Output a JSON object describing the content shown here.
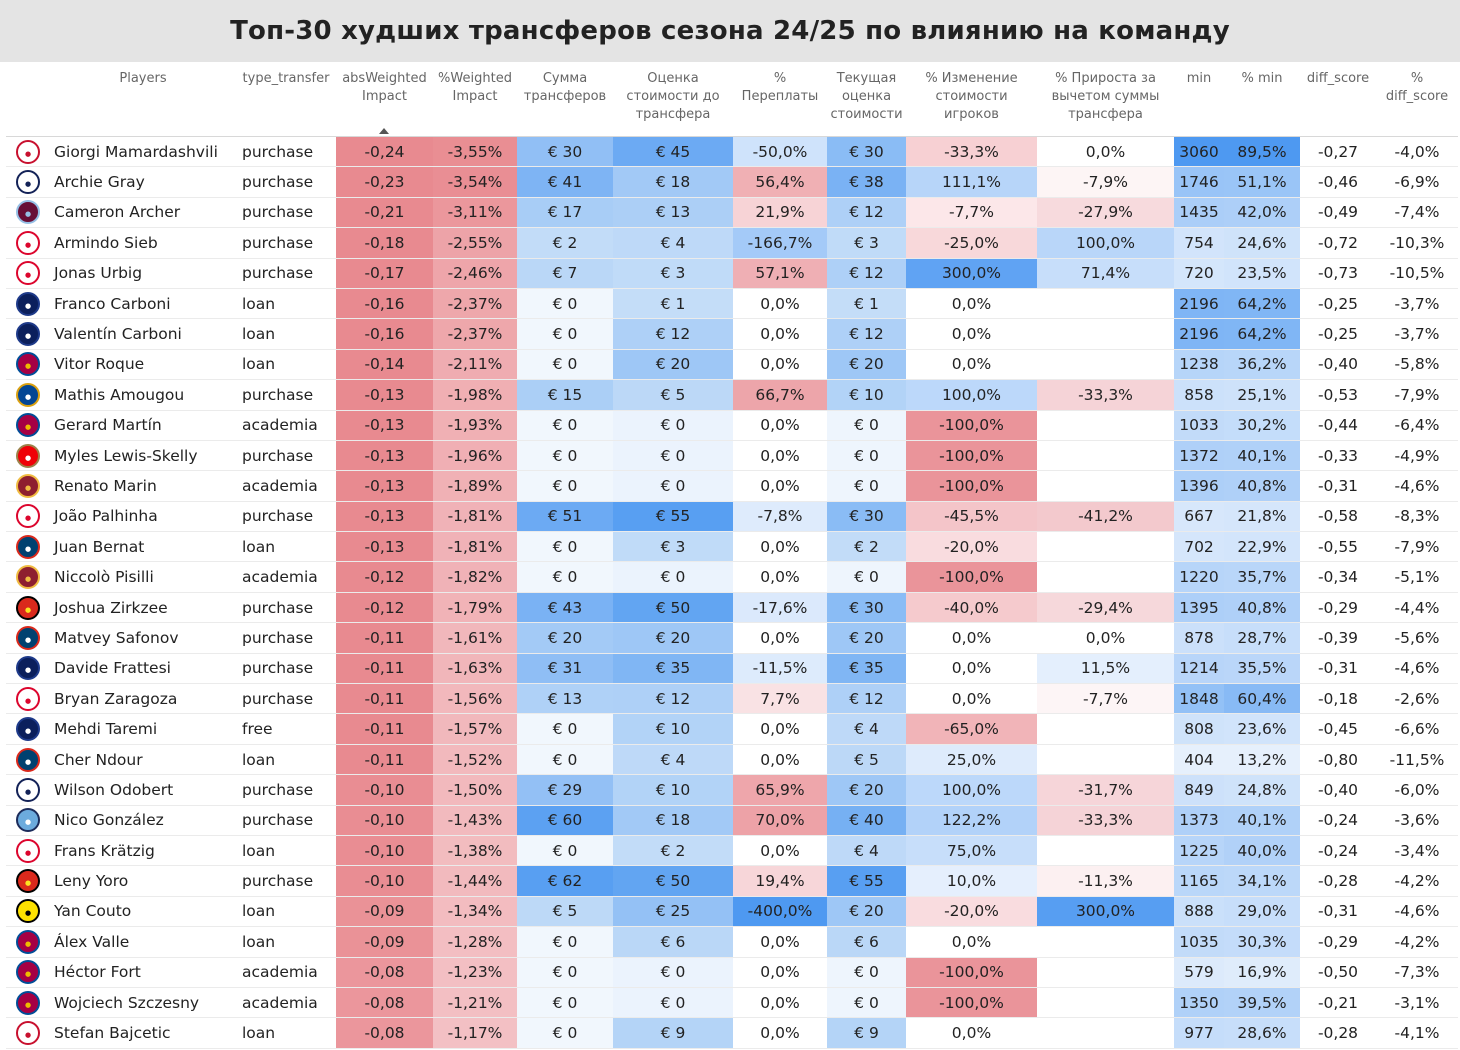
{
  "title": "Топ-30 худших трансферов сезона 24/25 по влиянию на команду",
  "chart_data": {
    "type": "table",
    "columns": [
      "Players",
      "type_transfer",
      "absWeighted Impact",
      "%Weighted Impact",
      "Сумма трансферов",
      "Оценка стоимости до трансфера",
      "% Переплаты",
      "Текущая оценка стоимости",
      "% Изменение стоимости игроков",
      "% Прироста за вычетом суммы трансфера",
      "min",
      "% min",
      "diff_score",
      "% diff_score"
    ],
    "rows": [
      {
        "club": "liverpool-icon",
        "player": "Giorgi Mamardashvili",
        "type": "purchase",
        "abs": "-0,24",
        "pct": "-3,55%",
        "sum": "€ 30",
        "before": "€ 45",
        "over": "-50,0%",
        "current": "€ 30",
        "change": "-33,3%",
        "growth": "0,0%",
        "min": "3060",
        "pmin": "89,5%",
        "diff": "-0,27",
        "pdiff": "-4,0%"
      },
      {
        "club": "tottenham-icon",
        "player": "Archie Gray",
        "type": "purchase",
        "abs": "-0,23",
        "pct": "-3,54%",
        "sum": "€ 41",
        "before": "€ 18",
        "over": "56,4%",
        "current": "€ 38",
        "change": "111,1%",
        "growth": "-7,9%",
        "min": "1746",
        "pmin": "51,1%",
        "diff": "-0,46",
        "pdiff": "-6,9%"
      },
      {
        "club": "aston-villa-icon",
        "player": "Cameron Archer",
        "type": "purchase",
        "abs": "-0,21",
        "pct": "-3,11%",
        "sum": "€ 17",
        "before": "€ 13",
        "over": "21,9%",
        "current": "€ 12",
        "change": "-7,7%",
        "growth": "-27,9%",
        "min": "1435",
        "pmin": "42,0%",
        "diff": "-0,49",
        "pdiff": "-7,4%"
      },
      {
        "club": "bayern-icon",
        "player": "Armindo Sieb",
        "type": "purchase",
        "abs": "-0,18",
        "pct": "-2,55%",
        "sum": "€ 2",
        "before": "€ 4",
        "over": "-166,7%",
        "current": "€ 3",
        "change": "-25,0%",
        "growth": "100,0%",
        "min": "754",
        "pmin": "24,6%",
        "diff": "-0,72",
        "pdiff": "-10,3%"
      },
      {
        "club": "bayern-icon",
        "player": "Jonas Urbig",
        "type": "purchase",
        "abs": "-0,17",
        "pct": "-2,46%",
        "sum": "€ 7",
        "before": "€ 3",
        "over": "57,1%",
        "current": "€ 12",
        "change": "300,0%",
        "growth": "71,4%",
        "min": "720",
        "pmin": "23,5%",
        "diff": "-0,73",
        "pdiff": "-10,5%"
      },
      {
        "club": "inter-icon",
        "player": "Franco Carboni",
        "type": "loan",
        "abs": "-0,16",
        "pct": "-2,37%",
        "sum": "€ 0",
        "before": "€ 1",
        "over": "0,0%",
        "current": "€ 1",
        "change": "0,0%",
        "growth": "",
        "min": "2196",
        "pmin": "64,2%",
        "diff": "-0,25",
        "pdiff": "-3,7%"
      },
      {
        "club": "inter-icon",
        "player": "Valentín Carboni",
        "type": "loan",
        "abs": "-0,16",
        "pct": "-2,37%",
        "sum": "€ 0",
        "before": "€ 12",
        "over": "0,0%",
        "current": "€ 12",
        "change": "0,0%",
        "growth": "",
        "min": "2196",
        "pmin": "64,2%",
        "diff": "-0,25",
        "pdiff": "-3,7%"
      },
      {
        "club": "barcelona-icon",
        "player": "Vitor Roque",
        "type": "loan",
        "abs": "-0,14",
        "pct": "-2,11%",
        "sum": "€ 0",
        "before": "€ 20",
        "over": "0,0%",
        "current": "€ 20",
        "change": "0,0%",
        "growth": "",
        "min": "1238",
        "pmin": "36,2%",
        "diff": "-0,40",
        "pdiff": "-5,8%"
      },
      {
        "club": "chelsea-icon",
        "player": "Mathis Amougou",
        "type": "purchase",
        "abs": "-0,13",
        "pct": "-1,98%",
        "sum": "€ 15",
        "before": "€ 5",
        "over": "66,7%",
        "current": "€ 10",
        "change": "100,0%",
        "growth": "-33,3%",
        "min": "858",
        "pmin": "25,1%",
        "diff": "-0,53",
        "pdiff": "-7,9%"
      },
      {
        "club": "barcelona-icon",
        "player": "Gerard Martín",
        "type": "academia",
        "abs": "-0,13",
        "pct": "-1,93%",
        "sum": "€ 0",
        "before": "€ 0",
        "over": "0,0%",
        "current": "€ 0",
        "change": "-100,0%",
        "growth": "",
        "min": "1033",
        "pmin": "30,2%",
        "diff": "-0,44",
        "pdiff": "-6,4%"
      },
      {
        "club": "arsenal-icon",
        "player": "Myles Lewis-Skelly",
        "type": "purchase",
        "abs": "-0,13",
        "pct": "-1,96%",
        "sum": "€ 0",
        "before": "€ 0",
        "over": "0,0%",
        "current": "€ 0",
        "change": "-100,0%",
        "growth": "",
        "min": "1372",
        "pmin": "40,1%",
        "diff": "-0,33",
        "pdiff": "-4,9%"
      },
      {
        "club": "roma-icon",
        "player": "Renato Marin",
        "type": "academia",
        "abs": "-0,13",
        "pct": "-1,89%",
        "sum": "€ 0",
        "before": "€ 0",
        "over": "0,0%",
        "current": "€ 0",
        "change": "-100,0%",
        "growth": "",
        "min": "1396",
        "pmin": "40,8%",
        "diff": "-0,31",
        "pdiff": "-4,6%"
      },
      {
        "club": "bayern-icon",
        "player": "João Palhinha",
        "type": "purchase",
        "abs": "-0,13",
        "pct": "-1,81%",
        "sum": "€ 51",
        "before": "€ 55",
        "over": "-7,8%",
        "current": "€ 30",
        "change": "-45,5%",
        "growth": "-41,2%",
        "min": "667",
        "pmin": "21,8%",
        "diff": "-0,58",
        "pdiff": "-8,3%"
      },
      {
        "club": "psg-icon",
        "player": "Juan Bernat",
        "type": "loan",
        "abs": "-0,13",
        "pct": "-1,81%",
        "sum": "€ 0",
        "before": "€ 3",
        "over": "0,0%",
        "current": "€ 2",
        "change": "-20,0%",
        "growth": "",
        "min": "702",
        "pmin": "22,9%",
        "diff": "-0,55",
        "pdiff": "-7,9%"
      },
      {
        "club": "roma-icon",
        "player": "Niccolò Pisilli",
        "type": "academia",
        "abs": "-0,12",
        "pct": "-1,82%",
        "sum": "€ 0",
        "before": "€ 0",
        "over": "0,0%",
        "current": "€ 0",
        "change": "-100,0%",
        "growth": "",
        "min": "1220",
        "pmin": "35,7%",
        "diff": "-0,34",
        "pdiff": "-5,1%"
      },
      {
        "club": "man-utd-icon",
        "player": "Joshua Zirkzee",
        "type": "purchase",
        "abs": "-0,12",
        "pct": "-1,79%",
        "sum": "€ 43",
        "before": "€ 50",
        "over": "-17,6%",
        "current": "€ 30",
        "change": "-40,0%",
        "growth": "-29,4%",
        "min": "1395",
        "pmin": "40,8%",
        "diff": "-0,29",
        "pdiff": "-4,4%"
      },
      {
        "club": "psg-icon",
        "player": "Matvey Safonov",
        "type": "purchase",
        "abs": "-0,11",
        "pct": "-1,61%",
        "sum": "€ 20",
        "before": "€ 20",
        "over": "0,0%",
        "current": "€ 20",
        "change": "0,0%",
        "growth": "0,0%",
        "min": "878",
        "pmin": "28,7%",
        "diff": "-0,39",
        "pdiff": "-5,6%"
      },
      {
        "club": "inter-icon",
        "player": "Davide Frattesi",
        "type": "purchase",
        "abs": "-0,11",
        "pct": "-1,63%",
        "sum": "€ 31",
        "before": "€ 35",
        "over": "-11,5%",
        "current": "€ 35",
        "change": "0,0%",
        "growth": "11,5%",
        "min": "1214",
        "pmin": "35,5%",
        "diff": "-0,31",
        "pdiff": "-4,6%"
      },
      {
        "club": "bayern-icon",
        "player": "Bryan Zaragoza",
        "type": "purchase",
        "abs": "-0,11",
        "pct": "-1,56%",
        "sum": "€ 13",
        "before": "€ 12",
        "over": "7,7%",
        "current": "€ 12",
        "change": "0,0%",
        "growth": "-7,7%",
        "min": "1848",
        "pmin": "60,4%",
        "diff": "-0,18",
        "pdiff": "-2,6%"
      },
      {
        "club": "inter-icon",
        "player": "Mehdi Taremi",
        "type": "free",
        "abs": "-0,11",
        "pct": "-1,57%",
        "sum": "€ 0",
        "before": "€ 10",
        "over": "0,0%",
        "current": "€ 4",
        "change": "-65,0%",
        "growth": "",
        "min": "808",
        "pmin": "23,6%",
        "diff": "-0,45",
        "pdiff": "-6,6%"
      },
      {
        "club": "psg-icon",
        "player": "Cher Ndour",
        "type": "loan",
        "abs": "-0,11",
        "pct": "-1,52%",
        "sum": "€ 0",
        "before": "€ 4",
        "over": "0,0%",
        "current": "€ 5",
        "change": "25,0%",
        "growth": "",
        "min": "404",
        "pmin": "13,2%",
        "diff": "-0,80",
        "pdiff": "-11,5%"
      },
      {
        "club": "tottenham-icon",
        "player": "Wilson Odobert",
        "type": "purchase",
        "abs": "-0,10",
        "pct": "-1,50%",
        "sum": "€ 29",
        "before": "€ 10",
        "over": "65,9%",
        "current": "€ 20",
        "change": "100,0%",
        "growth": "-31,7%",
        "min": "849",
        "pmin": "24,8%",
        "diff": "-0,40",
        "pdiff": "-6,0%"
      },
      {
        "club": "man-city-icon",
        "player": "Nico González",
        "type": "purchase",
        "abs": "-0,10",
        "pct": "-1,43%",
        "sum": "€ 60",
        "before": "€ 18",
        "over": "70,0%",
        "current": "€ 40",
        "change": "122,2%",
        "growth": "-33,3%",
        "min": "1373",
        "pmin": "40,1%",
        "diff": "-0,24",
        "pdiff": "-3,6%"
      },
      {
        "club": "bayern-icon",
        "player": "Frans Krätzig",
        "type": "loan",
        "abs": "-0,10",
        "pct": "-1,38%",
        "sum": "€ 0",
        "before": "€ 2",
        "over": "0,0%",
        "current": "€ 4",
        "change": "75,0%",
        "growth": "",
        "min": "1225",
        "pmin": "40,0%",
        "diff": "-0,24",
        "pdiff": "-3,4%"
      },
      {
        "club": "man-utd-icon",
        "player": "Leny Yoro",
        "type": "purchase",
        "abs": "-0,10",
        "pct": "-1,44%",
        "sum": "€ 62",
        "before": "€ 50",
        "over": "19,4%",
        "current": "€ 55",
        "change": "10,0%",
        "growth": "-11,3%",
        "min": "1165",
        "pmin": "34,1%",
        "diff": "-0,28",
        "pdiff": "-4,2%"
      },
      {
        "club": "dortmund-icon",
        "player": "Yan Couto",
        "type": "loan",
        "abs": "-0,09",
        "pct": "-1,34%",
        "sum": "€ 5",
        "before": "€ 25",
        "over": "-400,0%",
        "current": "€ 20",
        "change": "-20,0%",
        "growth": "300,0%",
        "min": "888",
        "pmin": "29,0%",
        "diff": "-0,31",
        "pdiff": "-4,6%"
      },
      {
        "club": "barcelona-icon",
        "player": "Álex Valle",
        "type": "loan",
        "abs": "-0,09",
        "pct": "-1,28%",
        "sum": "€ 0",
        "before": "€ 6",
        "over": "0,0%",
        "current": "€ 6",
        "change": "0,0%",
        "growth": "",
        "min": "1035",
        "pmin": "30,3%",
        "diff": "-0,29",
        "pdiff": "-4,2%"
      },
      {
        "club": "barcelona-icon",
        "player": "Héctor Fort",
        "type": "academia",
        "abs": "-0,08",
        "pct": "-1,23%",
        "sum": "€ 0",
        "before": "€ 0",
        "over": "0,0%",
        "current": "€ 0",
        "change": "-100,0%",
        "growth": "",
        "min": "579",
        "pmin": "16,9%",
        "diff": "-0,50",
        "pdiff": "-7,3%"
      },
      {
        "club": "barcelona-icon",
        "player": "Wojciech Szczesny",
        "type": "academia",
        "abs": "-0,08",
        "pct": "-1,21%",
        "sum": "€ 0",
        "before": "€ 0",
        "over": "0,0%",
        "current": "€ 0",
        "change": "-100,0%",
        "growth": "",
        "min": "1350",
        "pmin": "39,5%",
        "diff": "-0,21",
        "pdiff": "-3,1%"
      },
      {
        "club": "liverpool-icon",
        "player": "Stefan Bajcetic",
        "type": "loan",
        "abs": "-0,08",
        "pct": "-1,17%",
        "sum": "€ 0",
        "before": "€ 9",
        "over": "0,0%",
        "current": "€ 9",
        "change": "0,0%",
        "growth": "",
        "min": "977",
        "pmin": "28,6%",
        "diff": "-0,28",
        "pdiff": "-4,1%"
      }
    ]
  },
  "club_colors": {
    "liverpool-icon": {
      "bg": "#ffffff",
      "fg": "#c8102e",
      "border": "#c8102e"
    },
    "tottenham-icon": {
      "bg": "#ffffff",
      "fg": "#132257",
      "border": "#132257"
    },
    "aston-villa-icon": {
      "bg": "#670e36",
      "fg": "#95bfe5",
      "border": "#95bfe5"
    },
    "bayern-icon": {
      "bg": "#ffffff",
      "fg": "#dc052d",
      "border": "#dc052d"
    },
    "inter-icon": {
      "bg": "#0b1f5c",
      "fg": "#ffffff",
      "border": "#1e3a8a"
    },
    "barcelona-icon": {
      "bg": "#a50044",
      "fg": "#edbb00",
      "border": "#004d98"
    },
    "chelsea-icon": {
      "bg": "#034694",
      "fg": "#ffffff",
      "border": "#dba111"
    },
    "arsenal-icon": {
      "bg": "#ef0107",
      "fg": "#ffffff",
      "border": "#9c824a"
    },
    "roma-icon": {
      "bg": "#8e1f2f",
      "fg": "#f0bc42",
      "border": "#f0bc42"
    },
    "psg-icon": {
      "bg": "#004170",
      "fg": "#ffffff",
      "border": "#da291c"
    },
    "man-utd-icon": {
      "bg": "#da291c",
      "fg": "#fbe122",
      "border": "#000000"
    },
    "man-city-icon": {
      "bg": "#6cabdd",
      "fg": "#ffffff",
      "border": "#1c2c5b"
    },
    "dortmund-icon": {
      "bg": "#fde100",
      "fg": "#000000",
      "border": "#000000"
    }
  }
}
